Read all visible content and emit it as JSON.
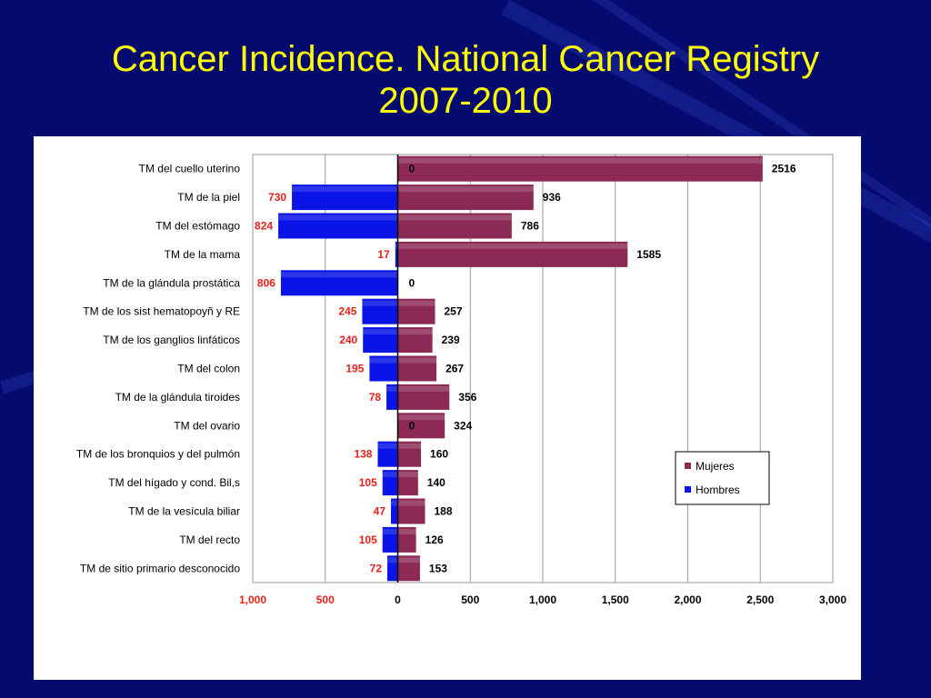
{
  "slide": {
    "title_line1": "Cancer Incidence. National Cancer Registry",
    "title_line2": "2007-2010"
  },
  "chart_data": {
    "type": "bar",
    "orientation": "horizontal",
    "layout": "population-pyramid",
    "categories": [
      "TM del cuello uterino",
      "TM de la piel",
      "TM del estómago",
      "TM de la mama",
      "TM de la glándula prostática",
      "TM de los sist hematopoyñ y RE",
      "TM de los ganglios linfáticos",
      "TM del colon",
      "TM de la glándula tiroides",
      "TM del ovario",
      "TM de los bronquios y del pulmón",
      "TM del hígado y cond. Bil,s",
      "TM de la vesícula biliar",
      "TM del recto",
      "TM de sitio primario desconocido"
    ],
    "series": [
      {
        "name": "Mujeres",
        "color": "#8c2a55",
        "side": "right",
        "values": [
          2516,
          936,
          786,
          1585,
          0,
          257,
          239,
          267,
          356,
          324,
          160,
          140,
          188,
          126,
          153
        ],
        "labels": [
          "2516",
          "936",
          "786",
          "1585",
          "0",
          "257",
          "239",
          "267",
          "356",
          "324",
          "160",
          "140",
          "188",
          "126",
          "153"
        ]
      },
      {
        "name": "Hombres",
        "color": "#0a14e6",
        "side": "left",
        "values": [
          0,
          730,
          824,
          17,
          806,
          245,
          240,
          195,
          78,
          0,
          138,
          105,
          47,
          105,
          72
        ],
        "labels": [
          "0",
          "730",
          "824",
          "17",
          "806",
          "245",
          "240",
          "195",
          "78",
          "0",
          "138",
          "105",
          "47",
          "105",
          "72"
        ]
      }
    ],
    "xlim": [
      -1000,
      3000
    ],
    "xticks": [
      -1000,
      -500,
      0,
      500,
      1000,
      1500,
      2000,
      2500,
      3000
    ],
    "xtick_labels": [
      "1,000",
      "500",
      "0",
      "500",
      "1,000",
      "1,500",
      "2,000",
      "2,500",
      "3,000"
    ],
    "negative_tick_color": "#e8201a",
    "label_color_left": "#e8201a",
    "label_color_right": "#000000",
    "grid_x": true,
    "legend_position": "right-lower",
    "legend": [
      "Mujeres",
      "Hombres"
    ]
  }
}
